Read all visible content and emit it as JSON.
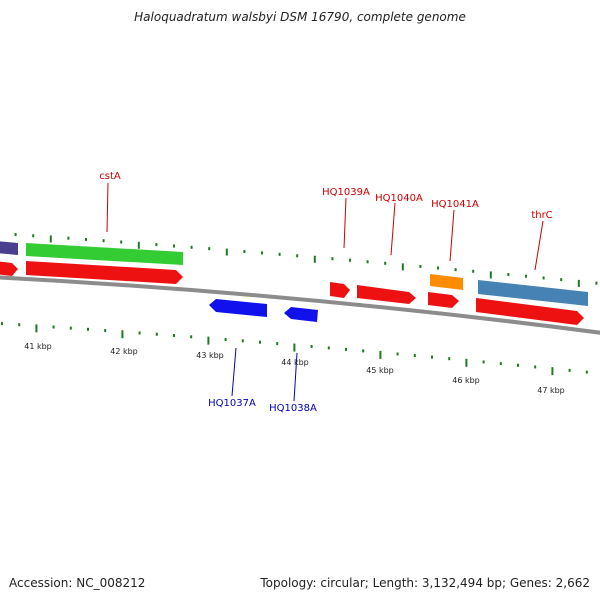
{
  "title": "Haloquadratum walsbyi DSM 16790, complete genome",
  "footer": {
    "accession": "Accession: NC_008212",
    "summary": "Topology: circular; Length: 3,132,494 bp; Genes: 2,662"
  },
  "colors": {
    "backbone": "#8c8c8c",
    "tick": "#1e7a1e",
    "forward_label": "#cc0000",
    "reverse_label": "#0000bb",
    "cds_red": "#ee1111",
    "gene_green": "#33cc33",
    "gene_blue": "#1111ee",
    "gene_orange": "#ff8c00",
    "gene_steel": "#4682b4",
    "gene_purple": "#4a3f8f"
  },
  "ticks": [
    {
      "kbp": 41,
      "label": "41 kbp"
    },
    {
      "kbp": 42,
      "label": "42 kbp"
    },
    {
      "kbp": 43,
      "label": "43 kbp"
    },
    {
      "kbp": 44,
      "label": "44 kbp"
    },
    {
      "kbp": 45,
      "label": "45 kbp"
    },
    {
      "kbp": 46,
      "label": "46 kbp"
    },
    {
      "kbp": 47,
      "label": "47 kbp"
    }
  ],
  "genes_forward": [
    {
      "name": "",
      "color": "gene_purple"
    },
    {
      "name": "cstA",
      "color": "gene_green"
    },
    {
      "name": "HQ1039A",
      "color": "cds_red"
    },
    {
      "name": "HQ1040A",
      "color": "cds_red"
    },
    {
      "name": "HQ1041A",
      "color": "gene_orange"
    },
    {
      "name": "thrC",
      "color": "gene_steel"
    }
  ],
  "genes_reverse": [
    {
      "name": "HQ1037A",
      "color": "gene_blue"
    },
    {
      "name": "HQ1038A",
      "color": "gene_blue"
    }
  ]
}
